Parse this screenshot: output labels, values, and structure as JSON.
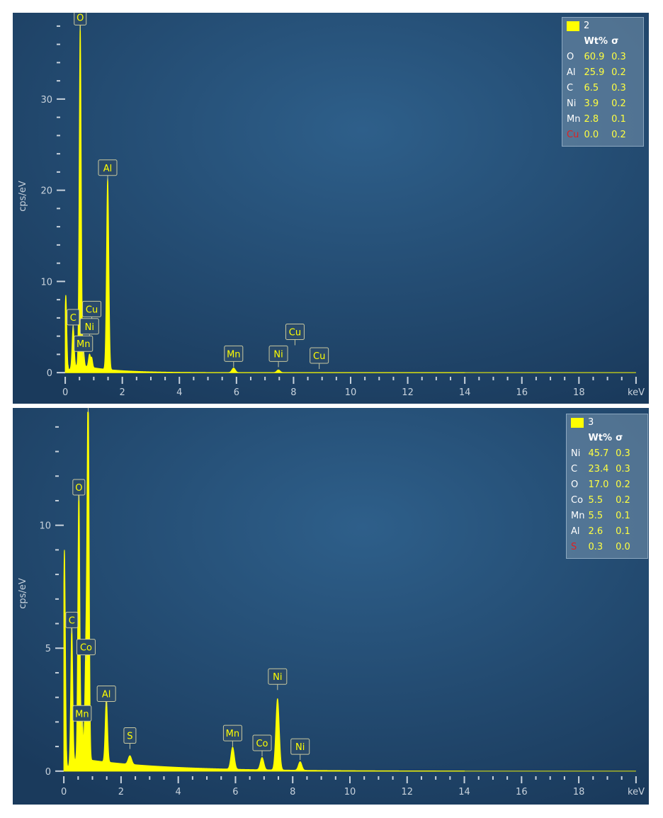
{
  "chart_data": [
    {
      "type": "line",
      "xlabel": "keV",
      "ylabel": "cps/eV",
      "xlim": [
        -0.3,
        20.3
      ],
      "ylim": [
        -0.3,
        39
      ],
      "x_ticks": [
        0,
        2,
        4,
        6,
        8,
        10,
        12,
        14,
        16,
        18
      ],
      "y_ticks": [
        0,
        10,
        20,
        30
      ],
      "legend": {
        "name": "2",
        "headers": [
          "Wt%",
          "σ"
        ],
        "rows": [
          {
            "element": "O",
            "wt": "60.9",
            "sigma": "0.3",
            "highlight": false
          },
          {
            "element": "Al",
            "wt": "25.9",
            "sigma": "0.2",
            "highlight": false
          },
          {
            "element": "C",
            "wt": "6.5",
            "sigma": "0.3",
            "highlight": false
          },
          {
            "element": "Ni",
            "wt": "3.9",
            "sigma": "0.2",
            "highlight": false
          },
          {
            "element": "Mn",
            "wt": "2.8",
            "sigma": "0.1",
            "highlight": false
          },
          {
            "element": "Cu",
            "wt": "0.0",
            "sigma": "0.2",
            "highlight": true
          }
        ]
      },
      "peaks": [
        {
          "x": 0.02,
          "y": 8.5,
          "w": 0.035
        },
        {
          "x": 0.277,
          "y": 4.6,
          "w": 0.035
        },
        {
          "x": 0.525,
          "y": 37.5,
          "w": 0.035
        },
        {
          "x": 0.637,
          "y": 1.7,
          "w": 0.03
        },
        {
          "x": 0.85,
          "y": 1.4,
          "w": 0.035
        },
        {
          "x": 0.93,
          "y": 1.0,
          "w": 0.03
        },
        {
          "x": 1.487,
          "y": 21.0,
          "w": 0.04
        },
        {
          "x": 5.9,
          "y": 0.5,
          "w": 0.06
        },
        {
          "x": 7.47,
          "y": 0.3,
          "w": 0.06
        }
      ],
      "background": {
        "amp": 1.2,
        "decay": 0.9,
        "end": 11
      },
      "labels": [
        {
          "text": "O",
          "x": 0.525,
          "y": 37.5
        },
        {
          "text": "Al",
          "x": 1.487,
          "y": 21.0
        },
        {
          "text": "C",
          "x": 0.277,
          "y": 4.6
        },
        {
          "text": "Cu",
          "x": 0.93,
          "y": 5.5
        },
        {
          "text": "Ni",
          "x": 0.85,
          "y": 3.6
        },
        {
          "text": "Mn",
          "x": 0.637,
          "y": 1.7
        },
        {
          "text": "Mn",
          "x": 5.9,
          "y": 0.6
        },
        {
          "text": "Ni",
          "x": 7.47,
          "y": 0.6
        },
        {
          "text": "Cu",
          "x": 8.05,
          "y": 3.0
        },
        {
          "text": "Cu",
          "x": 8.9,
          "y": 0.4
        }
      ]
    },
    {
      "type": "line",
      "xlabel": "keV",
      "ylabel": "cps/eV",
      "xlim": [
        -0.3,
        20.3
      ],
      "ylim": [
        -0.15,
        14.6
      ],
      "x_ticks": [
        0,
        2,
        4,
        6,
        8,
        10,
        12,
        14,
        16,
        18
      ],
      "y_ticks": [
        0,
        5,
        10
      ],
      "legend": {
        "name": "3",
        "headers": [
          "Wt%",
          "σ"
        ],
        "rows": [
          {
            "element": "Ni",
            "wt": "45.7",
            "sigma": "0.3",
            "highlight": false
          },
          {
            "element": "C",
            "wt": "23.4",
            "sigma": "0.3",
            "highlight": false
          },
          {
            "element": "O",
            "wt": "17.0",
            "sigma": "0.2",
            "highlight": false
          },
          {
            "element": "Co",
            "wt": "5.5",
            "sigma": "0.2",
            "highlight": false
          },
          {
            "element": "Mn",
            "wt": "5.5",
            "sigma": "0.1",
            "highlight": false
          },
          {
            "element": "Al",
            "wt": "2.6",
            "sigma": "0.1",
            "highlight": false
          },
          {
            "element": "S",
            "wt": "0.3",
            "sigma": "0.0",
            "highlight": true
          }
        ]
      },
      "peaks": [
        {
          "x": 0.02,
          "y": 9.0,
          "w": 0.035
        },
        {
          "x": 0.277,
          "y": 5.6,
          "w": 0.035
        },
        {
          "x": 0.525,
          "y": 11.0,
          "w": 0.035
        },
        {
          "x": 0.637,
          "y": 1.8,
          "w": 0.03
        },
        {
          "x": 0.776,
          "y": 4.5,
          "w": 0.04
        },
        {
          "x": 0.851,
          "y": 14.6,
          "w": 0.035
        },
        {
          "x": 1.487,
          "y": 2.6,
          "w": 0.04
        },
        {
          "x": 2.31,
          "y": 0.35,
          "w": 0.06
        },
        {
          "x": 5.9,
          "y": 0.9,
          "w": 0.06
        },
        {
          "x": 6.93,
          "y": 0.5,
          "w": 0.06
        },
        {
          "x": 7.47,
          "y": 2.9,
          "w": 0.06
        },
        {
          "x": 8.26,
          "y": 0.35,
          "w": 0.06
        }
      ],
      "background": {
        "amp": 0.6,
        "decay": 0.35,
        "end": 14
      },
      "labels": [
        {
          "text": "Ni",
          "x": 0.851,
          "y": 14.6
        },
        {
          "text": "O",
          "x": 0.525,
          "y": 11.0
        },
        {
          "text": "C",
          "x": 0.277,
          "y": 5.6
        },
        {
          "text": "Co",
          "x": 0.776,
          "y": 4.5
        },
        {
          "text": "Al",
          "x": 1.487,
          "y": 2.6
        },
        {
          "text": "Mn",
          "x": 0.637,
          "y": 1.8
        },
        {
          "text": "S",
          "x": 2.31,
          "y": 0.9
        },
        {
          "text": "Mn",
          "x": 5.9,
          "y": 1.0
        },
        {
          "text": "Co",
          "x": 6.93,
          "y": 0.6
        },
        {
          "text": "Ni",
          "x": 7.47,
          "y": 3.3
        },
        {
          "text": "Ni",
          "x": 8.26,
          "y": 0.45
        }
      ]
    }
  ]
}
